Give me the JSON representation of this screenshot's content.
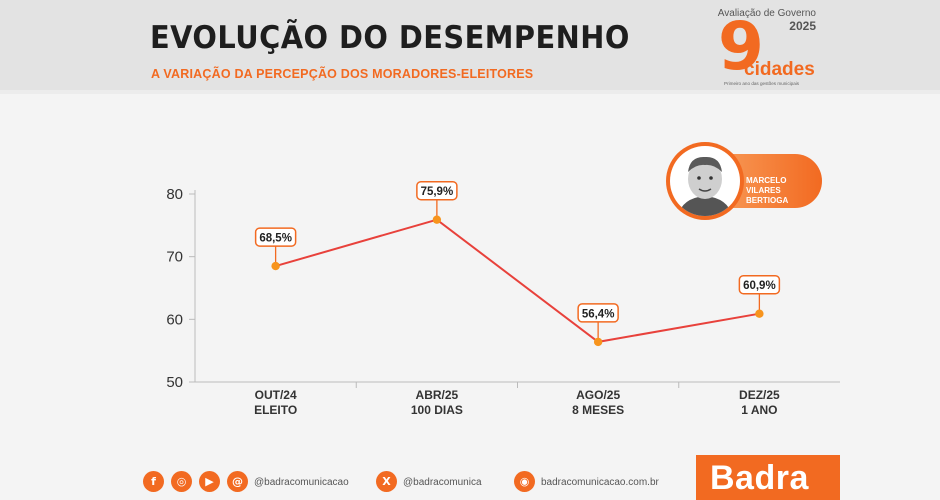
{
  "header": {
    "title": "EVOLUÇÃO DO DESEMPENHO",
    "subtitle": "A VARIAÇÃO DA PERCEPÇÃO DOS MORADORES-ELEITORES"
  },
  "logo": {
    "caption": "Avaliação de Governo",
    "year": "2025",
    "number": "9",
    "word": "cidades",
    "tagline": "Primeiro ano das gestões municipais"
  },
  "profile": {
    "name_line1": "MARCELO VILARES",
    "name_line2": "BERTIOGA"
  },
  "chart_data": {
    "type": "line",
    "categories": [
      "OUT/24",
      "ABR/25",
      "AGO/25",
      "DEZ/25"
    ],
    "sublabels": [
      "ELEITO",
      "100 DIAS",
      "8 MESES",
      "1 ANO"
    ],
    "values": [
      68.5,
      75.9,
      56.4,
      60.9
    ],
    "data_labels": [
      "68,5%",
      "75,9%",
      "56,4%",
      "60,9%"
    ],
    "yticks": [
      50,
      60,
      70,
      80
    ],
    "ylim": [
      50,
      80
    ],
    "grid": false,
    "line_color": "#e8413b",
    "marker_color": "#f7941d",
    "label_border_color": "#f26a21"
  },
  "footer": {
    "instagram_handle": "@badracomunicacao",
    "x_handle": "@badracomunica",
    "website": "badracomunicacao.com.br",
    "brand": "Badra"
  },
  "colors": {
    "accent": "#f26a21",
    "title": "#1e1e1e"
  }
}
